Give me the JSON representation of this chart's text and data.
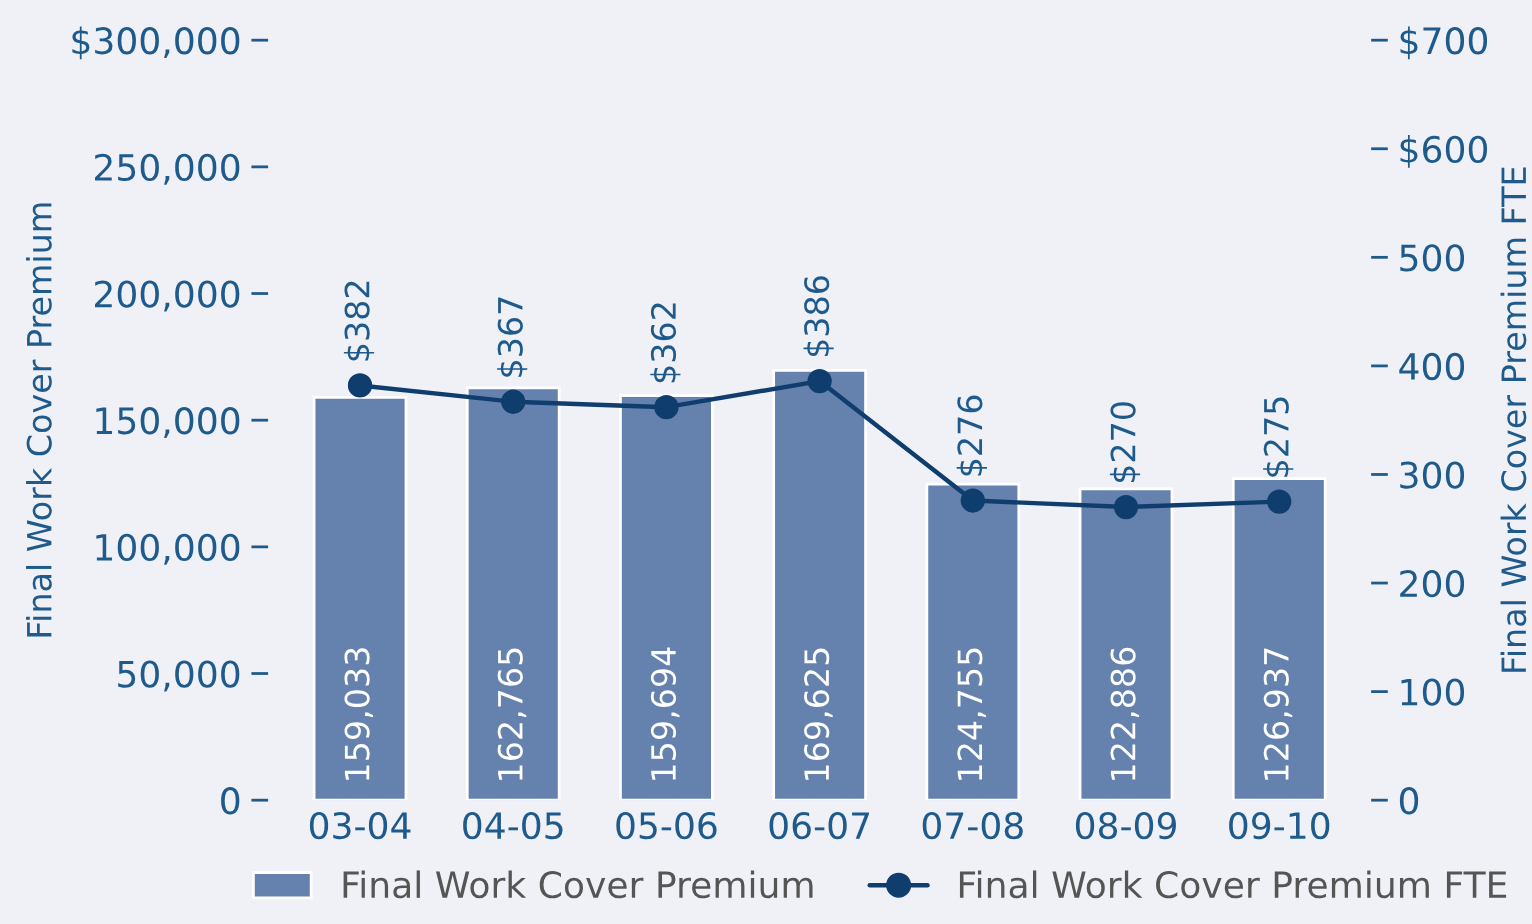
{
  "chart_data": {
    "type": "bar",
    "categories": [
      "03-04",
      "04-05",
      "05-06",
      "06-07",
      "07-08",
      "08-09",
      "09-10"
    ],
    "ylabel": "Final Work Cover Premium",
    "y2label": "Final Work Cover Premium FTE",
    "ylim": [
      0,
      300000
    ],
    "yticks": [
      {
        "value": 0,
        "label": "0"
      },
      {
        "value": 50000,
        "label": "50,000"
      },
      {
        "value": 100000,
        "label": "100,000"
      },
      {
        "value": 150000,
        "label": "150,000"
      },
      {
        "value": 200000,
        "label": "200,000"
      },
      {
        "value": 250000,
        "label": "250,000"
      },
      {
        "value": 300000,
        "label": "$300,000"
      }
    ],
    "y2lim": [
      0,
      700
    ],
    "y2ticks": [
      0,
      100,
      200,
      300,
      400,
      500,
      {
        "value": 600,
        "label": "$600"
      },
      {
        "value": 700,
        "label": "$700"
      }
    ],
    "series": [
      {
        "name": "Final Work Cover Premium",
        "color": "#6482ad",
        "values": [
          159033,
          162765,
          159694,
          169625,
          124755,
          122886,
          126937
        ],
        "value_labels": [
          "159,033",
          "162,765",
          "159,694",
          "169,625",
          "124,755",
          "122,886",
          "126,937"
        ]
      },
      {
        "name": "Final Work Cover Premium FTE",
        "type": "line",
        "axis": "y2",
        "color": "#0f3e6e",
        "marker": "circle",
        "values": [
          382,
          367,
          362,
          386,
          276,
          270,
          275
        ],
        "value_labels": [
          "$382",
          "$367",
          "$362",
          "$386",
          "$276",
          "$270",
          "$275"
        ]
      }
    ],
    "legend": "bottom"
  }
}
